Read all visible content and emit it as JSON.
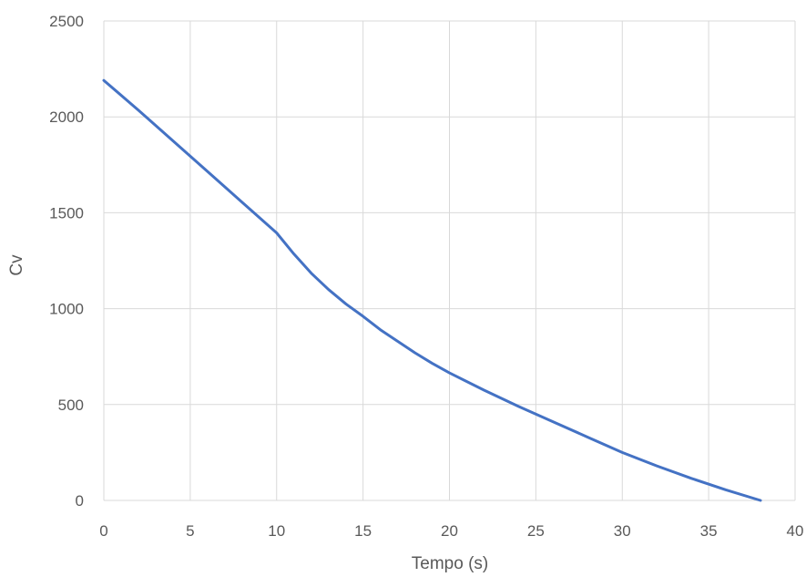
{
  "chart_data": {
    "type": "line",
    "title": "",
    "xlabel": "Tempo (s)",
    "ylabel": "Cv",
    "xlim": [
      0,
      40
    ],
    "ylim": [
      0,
      2500
    ],
    "x_ticks": [
      "0",
      "5",
      "10",
      "15",
      "20",
      "25",
      "30",
      "35",
      "40"
    ],
    "y_ticks": [
      "0",
      "500",
      "1000",
      "1500",
      "2000",
      "2500"
    ],
    "grid": true,
    "legend": "none",
    "series": [
      {
        "color": "#4472c4",
        "x": [
          0,
          2,
          4,
          6,
          8,
          10,
          11,
          12,
          13,
          14,
          15,
          16,
          17,
          18,
          19,
          20,
          22,
          24,
          26,
          28,
          30,
          32,
          34,
          36,
          38
        ],
        "y": [
          2190,
          2035,
          1875,
          1715,
          1555,
          1395,
          1285,
          1185,
          1100,
          1025,
          960,
          890,
          830,
          770,
          715,
          665,
          575,
          490,
          410,
          330,
          250,
          180,
          115,
          55,
          0
        ]
      }
    ]
  }
}
